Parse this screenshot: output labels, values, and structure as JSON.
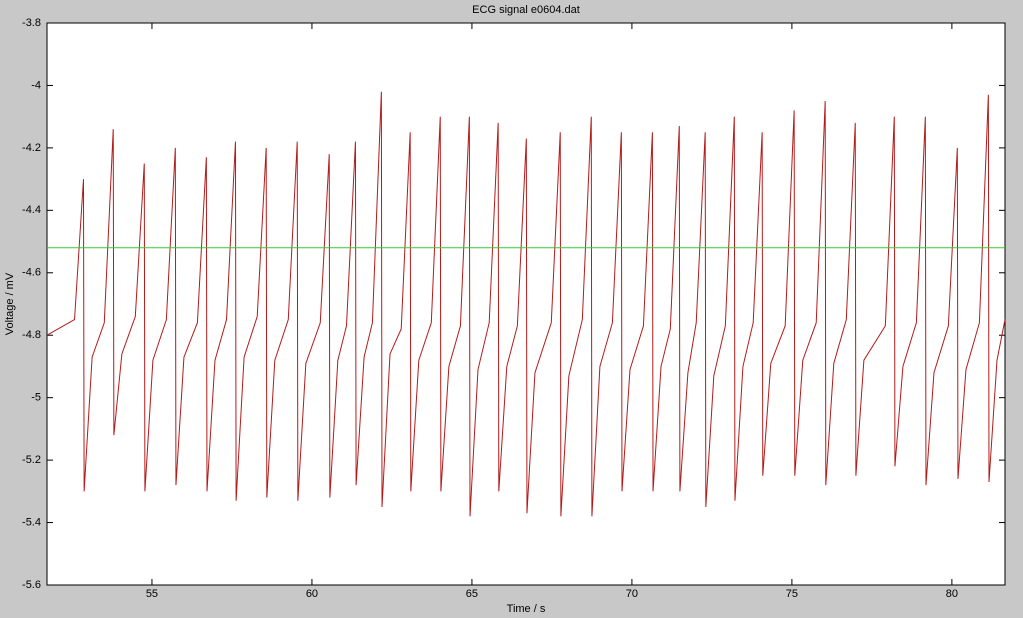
{
  "chart_data": {
    "type": "line",
    "title": "ECG signal e0604.dat",
    "xlabel": "Time / s",
    "ylabel": "Voltage / mV",
    "xlim": [
      51.72,
      81.66
    ],
    "ylim": [
      -5.6,
      -3.8
    ],
    "xticks": [
      55,
      60,
      65,
      70,
      75,
      80
    ],
    "yticks": [
      -3.8,
      -4,
      -4.2,
      -4.4,
      -4.6,
      -4.8,
      -5,
      -5.2,
      -5.4,
      -5.6
    ],
    "grid": false,
    "series": [
      {
        "color": "#b31b1b",
        "x": [
          51.72,
          52.58,
          52.86,
          52.88,
          53.13,
          53.51,
          53.79,
          53.81,
          54.06,
          54.48,
          54.76,
          54.78,
          55.03,
          55.45,
          55.73,
          55.75,
          56.0,
          56.42,
          56.7,
          56.72,
          56.97,
          57.33,
          57.61,
          57.63,
          57.88,
          58.29,
          58.57,
          58.59,
          58.84,
          59.26,
          59.54,
          59.56,
          59.81,
          60.26,
          60.54,
          60.56,
          60.81,
          61.08,
          61.36,
          61.38,
          61.63,
          61.89,
          62.17,
          62.19,
          62.44,
          62.79,
          63.07,
          63.09,
          63.34,
          63.73,
          64.01,
          64.03,
          64.28,
          64.64,
          64.92,
          64.94,
          65.19,
          65.54,
          65.82,
          65.84,
          66.09,
          66.42,
          66.7,
          66.72,
          66.97,
          67.48,
          67.76,
          67.78,
          68.03,
          68.45,
          68.73,
          68.75,
          69.0,
          69.39,
          69.67,
          69.69,
          69.94,
          70.36,
          70.64,
          70.66,
          70.91,
          71.2,
          71.48,
          71.5,
          71.75,
          72.01,
          72.29,
          72.31,
          72.56,
          72.92,
          73.2,
          73.22,
          73.47,
          73.79,
          74.07,
          74.09,
          74.34,
          74.79,
          75.07,
          75.09,
          75.34,
          75.76,
          76.04,
          76.06,
          76.31,
          76.7,
          76.98,
          77.0,
          77.25,
          77.92,
          78.2,
          78.22,
          78.47,
          78.89,
          79.17,
          79.19,
          79.44,
          79.89,
          80.17,
          80.19,
          80.44,
          80.86,
          81.14,
          81.16,
          81.41,
          81.66
        ],
        "values": [
          -4.8,
          -4.75,
          -4.3,
          -5.3,
          -4.87,
          -4.76,
          -4.14,
          -5.12,
          -4.86,
          -4.74,
          -4.25,
          -5.3,
          -4.88,
          -4.75,
          -4.2,
          -5.28,
          -4.87,
          -4.76,
          -4.23,
          -5.3,
          -4.88,
          -4.75,
          -4.18,
          -5.33,
          -4.87,
          -4.74,
          -4.2,
          -5.32,
          -4.88,
          -4.75,
          -4.18,
          -5.33,
          -4.89,
          -4.76,
          -4.22,
          -5.32,
          -4.88,
          -4.77,
          -4.18,
          -5.28,
          -4.87,
          -4.76,
          -4.02,
          -5.35,
          -4.86,
          -4.78,
          -4.15,
          -5.3,
          -4.88,
          -4.76,
          -4.1,
          -5.3,
          -4.9,
          -4.77,
          -4.1,
          -5.38,
          -4.91,
          -4.76,
          -4.12,
          -5.3,
          -4.9,
          -4.77,
          -4.17,
          -5.37,
          -4.92,
          -4.76,
          -4.15,
          -5.38,
          -4.93,
          -4.75,
          -4.1,
          -5.38,
          -4.9,
          -4.76,
          -4.15,
          -5.3,
          -4.91,
          -4.77,
          -4.15,
          -5.3,
          -4.9,
          -4.78,
          -4.13,
          -5.3,
          -4.92,
          -4.76,
          -4.15,
          -5.35,
          -4.93,
          -4.77,
          -4.1,
          -5.33,
          -4.9,
          -4.76,
          -4.15,
          -5.25,
          -4.89,
          -4.77,
          -4.08,
          -5.25,
          -4.88,
          -4.76,
          -4.05,
          -5.28,
          -4.89,
          -4.75,
          -4.12,
          -5.25,
          -4.88,
          -4.77,
          -4.1,
          -5.22,
          -4.9,
          -4.76,
          -4.1,
          -5.28,
          -4.92,
          -4.77,
          -4.2,
          -5.26,
          -4.91,
          -4.76,
          -4.03,
          -5.27,
          -4.88,
          -4.75
        ]
      },
      {
        "color": "#33cc33",
        "x": [
          51.72,
          81.66
        ],
        "values": [
          -4.52,
          -4.52
        ]
      }
    ]
  }
}
